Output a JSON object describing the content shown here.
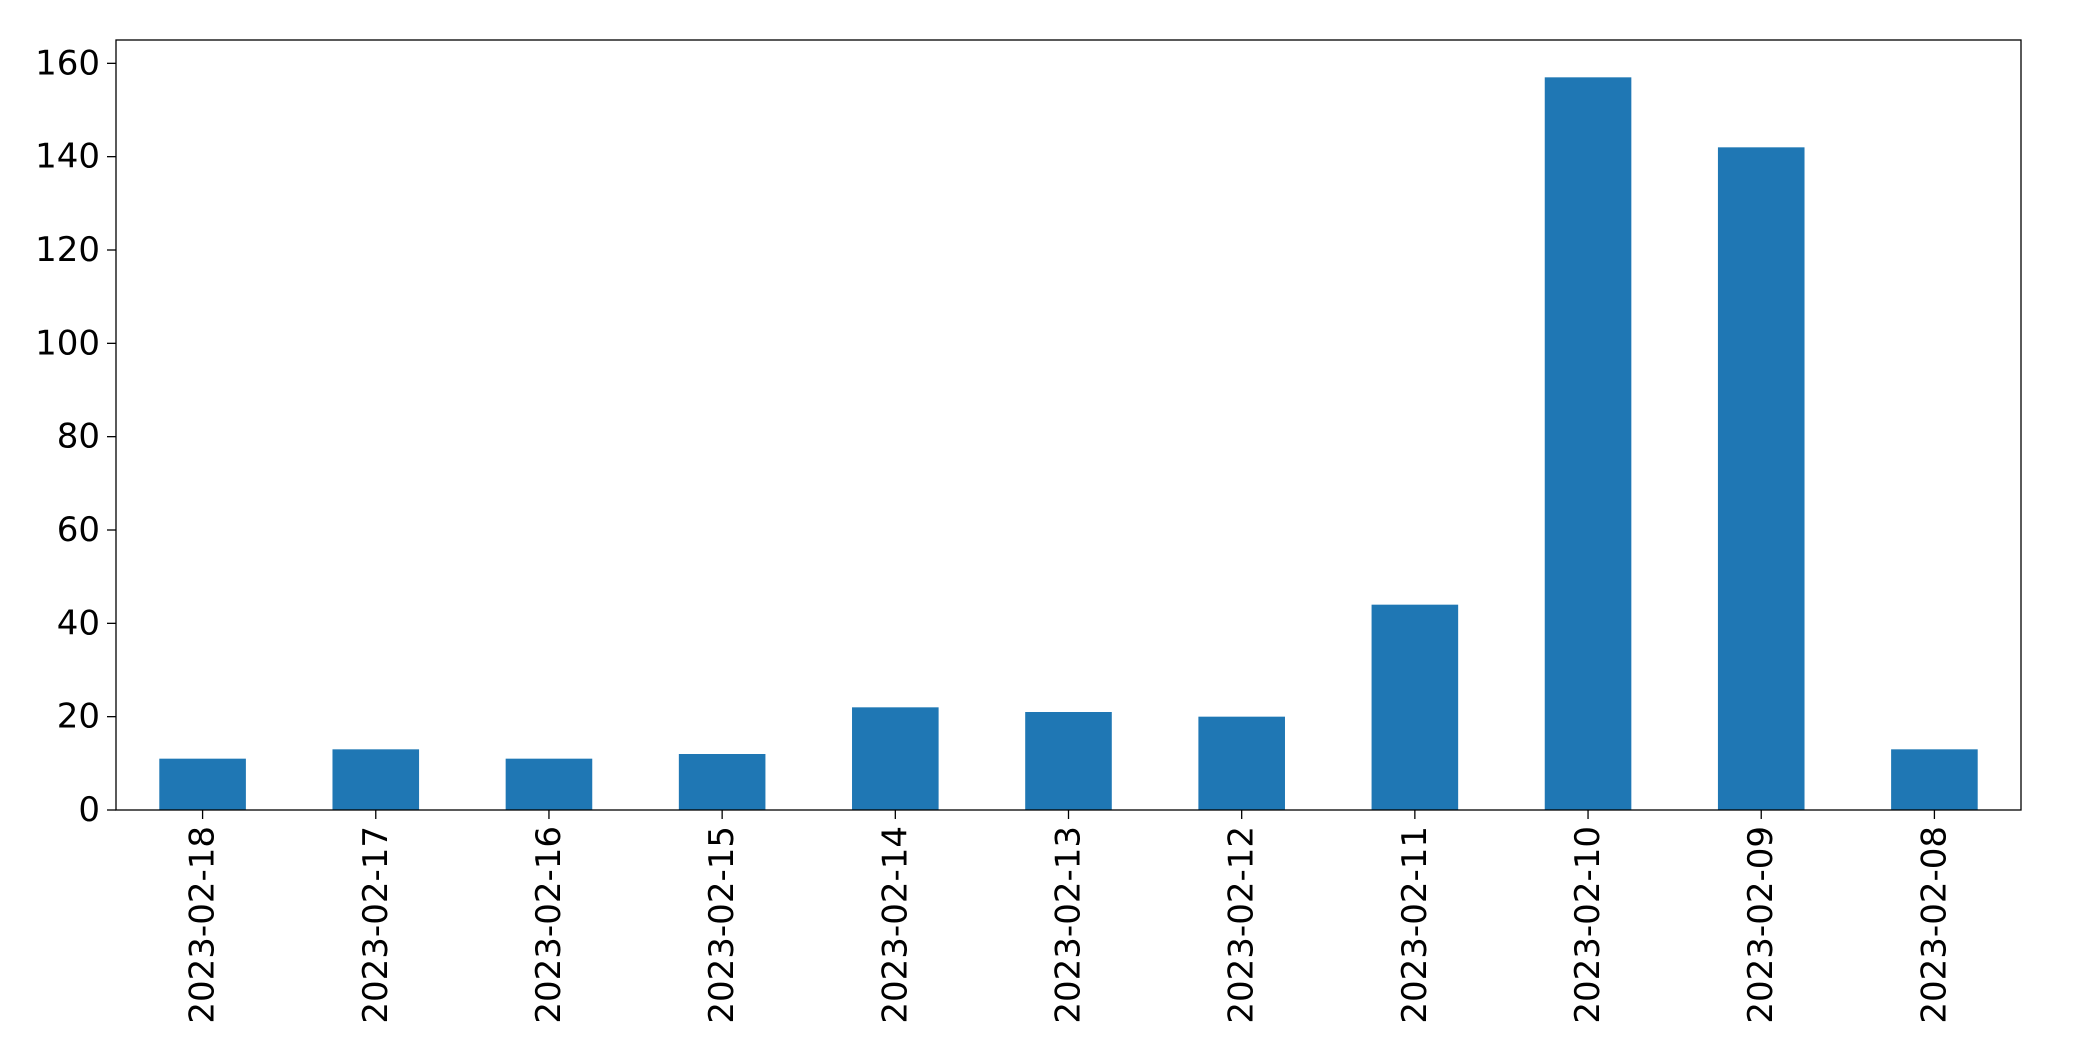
{
  "chart_data": {
    "type": "bar",
    "title": "",
    "xlabel": "",
    "ylabel": "",
    "categories": [
      "2023-02-18",
      "2023-02-17",
      "2023-02-16",
      "2023-02-15",
      "2023-02-14",
      "2023-02-13",
      "2023-02-12",
      "2023-02-11",
      "2023-02-10",
      "2023-02-09",
      "2023-02-08"
    ],
    "values": [
      11,
      13,
      11,
      12,
      22,
      21,
      20,
      44,
      157,
      142,
      13
    ],
    "ylim": [
      0,
      165
    ],
    "yticks": [
      0,
      20,
      40,
      60,
      80,
      100,
      120,
      140,
      160
    ],
    "grid": false,
    "legend": "none",
    "bar_color": "#1f77b4"
  }
}
